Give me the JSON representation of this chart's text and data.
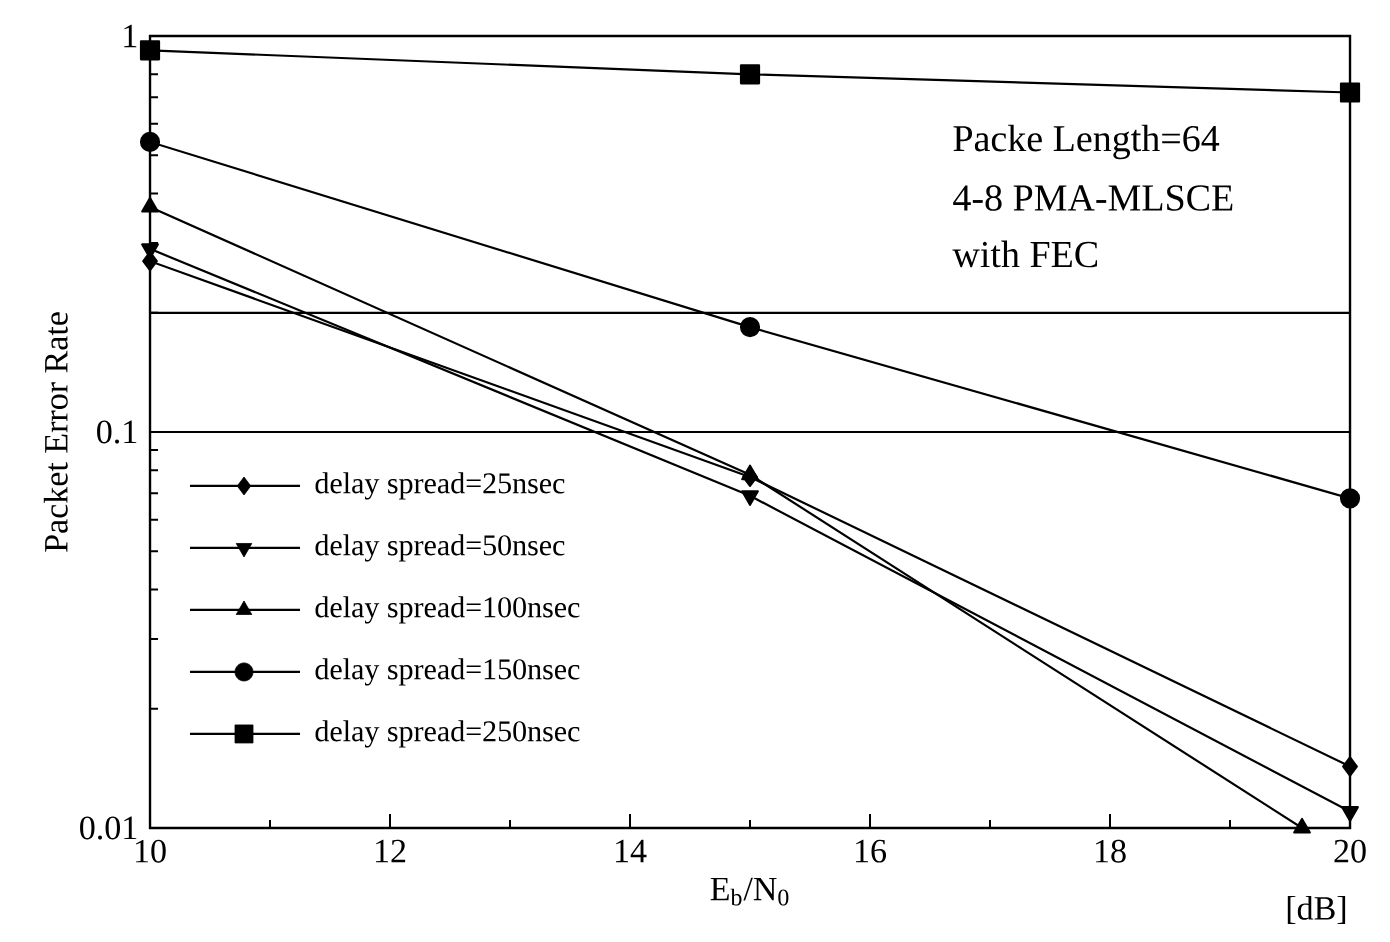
{
  "chart_data": {
    "type": "line",
    "xlabel": "E$_{b}$/N$_{0}$",
    "ylabel": "Packet Error Rate",
    "annotations": [
      "Packe Length=64",
      "4-8 PMA-MLSCE",
      "with FEC",
      "[dB]"
    ],
    "log": "y",
    "xlim": [
      10,
      20
    ],
    "ylim": [
      0.01,
      1
    ],
    "xticks": [
      10,
      12,
      14,
      16,
      18,
      20
    ],
    "yticks": [
      0.01,
      0.1,
      1
    ],
    "legend": "bottom left",
    "grid": false,
    "line_style": "solid",
    "ref_lines": [
      {
        "axis": "y",
        "value": 0.2,
        "color": "#000000"
      },
      {
        "axis": "y",
        "value": 0.1,
        "color": "#000000"
      }
    ],
    "series": [
      {
        "name": "delay spread=25nsec",
        "color": "#000000",
        "marker": "diamond",
        "x": [
          10,
          15,
          20
        ],
        "values": [
          0.27,
          0.077,
          0.0143
        ]
      },
      {
        "name": "delay spread=50nsec",
        "color": "#000000",
        "marker": "triangle-down",
        "x": [
          10,
          15,
          20
        ],
        "values": [
          0.29,
          0.069,
          0.011
        ]
      },
      {
        "name": "delay spread=100nsec",
        "color": "#000000",
        "marker": "triangle",
        "x": [
          10,
          15,
          19.6
        ],
        "values": [
          0.37,
          0.078,
          0.01
        ]
      },
      {
        "name": "delay spread=150nsec",
        "color": "#000000",
        "marker": "circle",
        "x": [
          10,
          15,
          20
        ],
        "values": [
          0.54,
          0.184,
          0.068
        ]
      },
      {
        "name": "delay spread=250nsec",
        "color": "#000000",
        "marker": "square",
        "x": [
          10,
          15,
          20
        ],
        "values": [
          0.92,
          0.8,
          0.72
        ]
      }
    ]
  }
}
